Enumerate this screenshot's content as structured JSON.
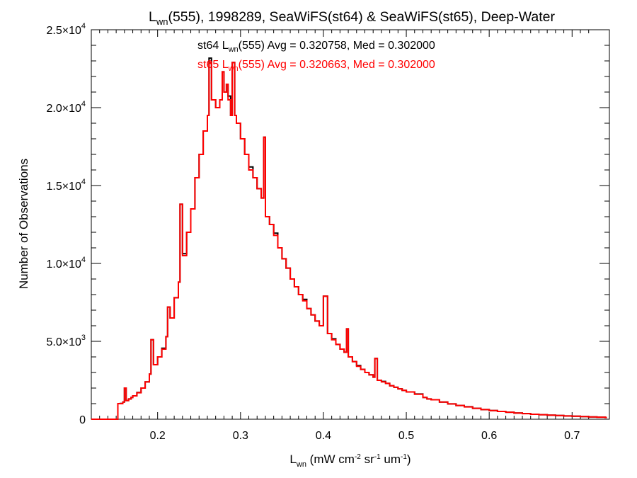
{
  "chart_data": {
    "type": "line",
    "title": {
      "main": "L",
      "sub": "wn",
      "rest": "(555), 1998289, SeaWiFS(st64) & SeaWiFS(st65), Deep-Water"
    },
    "xlabel": {
      "main": "L",
      "sub": "wn",
      "units_parts": [
        " (mW cm",
        "-2",
        " sr",
        "-1",
        " um",
        "-1",
        ")"
      ]
    },
    "ylabel": "Number of Observations",
    "xlim": [
      0.12,
      0.745
    ],
    "ylim": [
      0,
      25000
    ],
    "x_ticks": [
      0.2,
      0.3,
      0.4,
      0.5,
      0.6,
      0.7
    ],
    "x_tick_labels": [
      "0.2",
      "0.3",
      "0.4",
      "0.5",
      "0.6",
      "0.7"
    ],
    "y_ticks": [
      0,
      5000,
      10000,
      15000,
      20000,
      25000
    ],
    "y_tick_labels": [
      {
        "mant": "0",
        "exp": ""
      },
      {
        "mant": "5.0×10",
        "exp": "3"
      },
      {
        "mant": "1.0×10",
        "exp": "4"
      },
      {
        "mant": "1.5×10",
        "exp": "4"
      },
      {
        "mant": "2.0×10",
        "exp": "4"
      },
      {
        "mant": "2.5×10",
        "exp": "4"
      }
    ],
    "grid": false,
    "bin_width": 0.002,
    "series": [
      {
        "name": "st64",
        "color": "#000000",
        "stats": {
          "prefix": "st64 L",
          "sub": "wn",
          "text": "(555) Avg = 0.320758, Med = 0.302000"
        }
      },
      {
        "name": "st65",
        "color": "#ff0000",
        "stats": {
          "prefix": "st65 L",
          "sub": "wn",
          "text": "(555) Avg = 0.320663, Med = 0.302000"
        }
      }
    ],
    "x": [
      0.12,
      0.15,
      0.152,
      0.155,
      0.158,
      0.16,
      0.162,
      0.165,
      0.168,
      0.17,
      0.175,
      0.18,
      0.185,
      0.19,
      0.192,
      0.195,
      0.2,
      0.205,
      0.21,
      0.212,
      0.215,
      0.22,
      0.225,
      0.227,
      0.23,
      0.235,
      0.24,
      0.245,
      0.25,
      0.255,
      0.26,
      0.262,
      0.265,
      0.27,
      0.275,
      0.278,
      0.28,
      0.283,
      0.285,
      0.288,
      0.29,
      0.293,
      0.295,
      0.3,
      0.305,
      0.31,
      0.315,
      0.32,
      0.325,
      0.328,
      0.33,
      0.335,
      0.34,
      0.345,
      0.35,
      0.355,
      0.36,
      0.365,
      0.37,
      0.375,
      0.38,
      0.385,
      0.39,
      0.395,
      0.4,
      0.405,
      0.41,
      0.415,
      0.42,
      0.425,
      0.428,
      0.43,
      0.435,
      0.44,
      0.445,
      0.45,
      0.455,
      0.46,
      0.462,
      0.465,
      0.47,
      0.475,
      0.48,
      0.485,
      0.49,
      0.495,
      0.5,
      0.51,
      0.52,
      0.525,
      0.53,
      0.54,
      0.55,
      0.56,
      0.57,
      0.58,
      0.59,
      0.6,
      0.61,
      0.62,
      0.63,
      0.64,
      0.65,
      0.66,
      0.67,
      0.68,
      0.69,
      0.7,
      0.71,
      0.72,
      0.73,
      0.74
    ],
    "values": [
      0,
      0,
      1000,
      1000,
      1100,
      2000,
      1200,
      1300,
      1400,
      1500,
      1700,
      2000,
      2400,
      2900,
      5100,
      3500,
      4000,
      4500,
      5300,
      7200,
      6500,
      7800,
      8800,
      13800,
      10500,
      12000,
      13500,
      15500,
      17000,
      18500,
      19500,
      22900,
      20500,
      20000,
      20500,
      22300,
      21000,
      21500,
      20500,
      19500,
      22900,
      19500,
      19000,
      18000,
      17000,
      16000,
      15500,
      14800,
      14200,
      18100,
      13000,
      12500,
      11800,
      11000,
      10300,
      9700,
      9000,
      8500,
      8000,
      7600,
      7100,
      6700,
      6300,
      6000,
      7900,
      5500,
      5100,
      4800,
      4500,
      4300,
      5800,
      4000,
      3700,
      3400,
      3200,
      3000,
      2850,
      2700,
      3900,
      2500,
      2400,
      2300,
      2150,
      2050,
      1950,
      1850,
      1750,
      1600,
      1400,
      1300,
      1250,
      1100,
      980,
      880,
      790,
      700,
      620,
      560,
      500,
      450,
      400,
      360,
      320,
      290,
      260,
      240,
      210,
      190,
      170,
      150,
      130,
      110
    ]
  }
}
